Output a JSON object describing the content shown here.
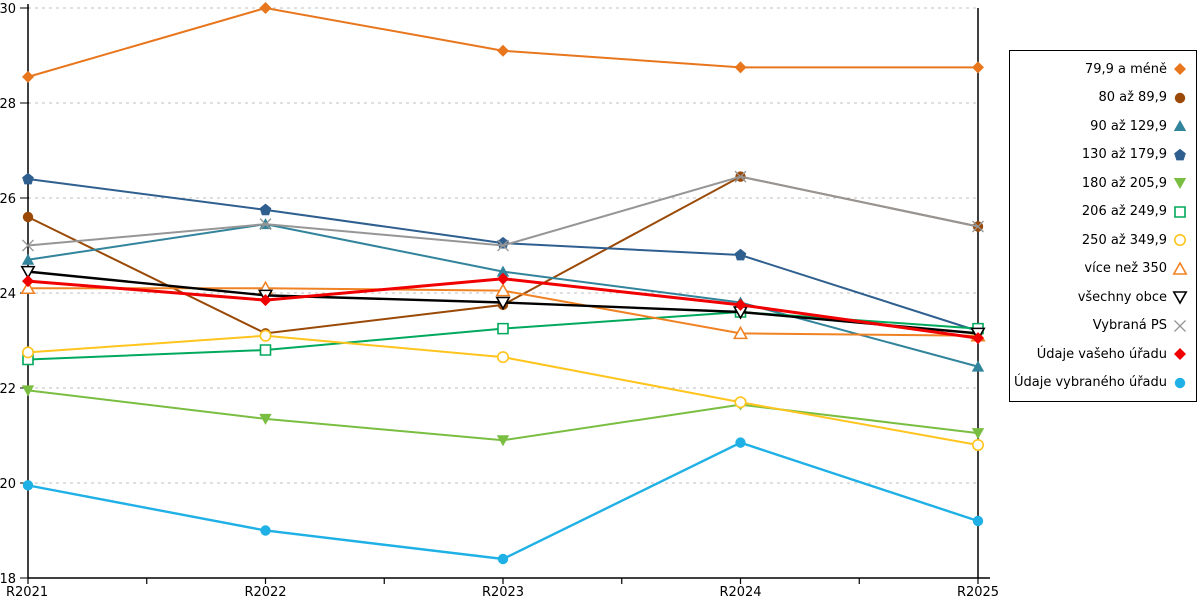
{
  "chart_data": {
    "type": "line",
    "categories": [
      "R2021",
      "R2022",
      "R2023",
      "R2024",
      "R2025"
    ],
    "xlabel": "",
    "ylabel": "",
    "ylim": [
      18,
      30
    ],
    "yticks": [
      18,
      20,
      22,
      24,
      26,
      28,
      30
    ],
    "grid": "horizontal-dashed",
    "legend_position": "right",
    "series": [
      {
        "name": "79,9 a méně",
        "color": "#E8761D",
        "marker": "diamond",
        "open": false,
        "line_width": 2,
        "values": [
          28.55,
          30.0,
          29.1,
          28.75,
          28.75
        ]
      },
      {
        "name": "80 až 89,9",
        "color": "#9A4906",
        "marker": "circle",
        "open": false,
        "line_width": 2,
        "values": [
          25.6,
          23.15,
          23.75,
          26.45,
          25.4
        ]
      },
      {
        "name": "90 až 129,9",
        "color": "#31849B",
        "marker": "triangle-up",
        "open": false,
        "line_width": 2,
        "values": [
          24.7,
          25.45,
          24.45,
          23.8,
          22.45
        ]
      },
      {
        "name": "130 až 179,9",
        "color": "#2E5F8F",
        "marker": "pentagon",
        "open": false,
        "line_width": 2,
        "values": [
          26.4,
          25.75,
          25.05,
          24.8,
          23.2
        ]
      },
      {
        "name": "180 až 205,9",
        "color": "#79BE41",
        "marker": "triangle-down",
        "open": false,
        "line_width": 2,
        "values": [
          21.95,
          21.35,
          20.9,
          21.65,
          21.05
        ]
      },
      {
        "name": "206 až 249,9",
        "color": "#00A95C",
        "marker": "square",
        "open": true,
        "line_width": 2,
        "values": [
          22.6,
          22.8,
          23.25,
          23.6,
          23.25
        ]
      },
      {
        "name": "250 až 349,9",
        "color": "#FFC41E",
        "marker": "circle",
        "open": true,
        "line_width": 2,
        "values": [
          22.75,
          23.1,
          22.65,
          21.7,
          20.8
        ]
      },
      {
        "name": "více než 350",
        "color": "#F08223",
        "marker": "triangle-up",
        "open": true,
        "line_width": 2,
        "values": [
          24.1,
          24.1,
          24.05,
          23.15,
          23.1
        ]
      },
      {
        "name": "všechny obce",
        "color": "#000000",
        "marker": "triangle-down",
        "open": true,
        "line_width": 2.4,
        "values": [
          24.45,
          23.95,
          23.8,
          23.6,
          23.15
        ]
      },
      {
        "name": "Vybraná PS",
        "color": "#969696",
        "marker": "x",
        "open": true,
        "line_width": 2,
        "values": [
          25.0,
          25.45,
          25.0,
          26.45,
          25.4
        ]
      },
      {
        "name": "Údaje vašeho úřadu",
        "color": "#F00000",
        "marker": "diamond",
        "open": false,
        "line_width": 3,
        "values": [
          24.25,
          23.85,
          24.3,
          23.75,
          23.05
        ]
      },
      {
        "name": "Údaje vybraného úřadu",
        "color": "#1FB0E6",
        "marker": "circle",
        "open": false,
        "line_width": 2.4,
        "values": [
          19.95,
          19.0,
          18.4,
          20.85,
          19.2
        ]
      }
    ]
  },
  "axes": {
    "y_tick_labels": [
      "30",
      "28",
      "26",
      "24",
      "22",
      "20",
      "18"
    ],
    "x_tick_labels": [
      "R2021",
      "R2022",
      "R2023",
      "R2024",
      "R2025"
    ],
    "axis_color": "#000000",
    "gridline_color": "#BFBFBF",
    "tick_font_size": 13
  }
}
